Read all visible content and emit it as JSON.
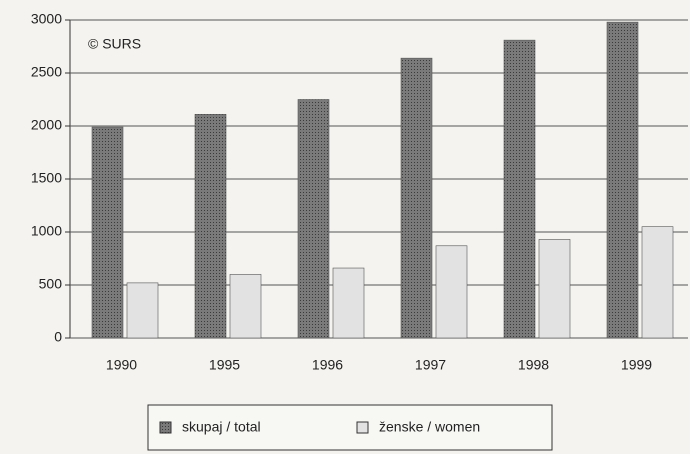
{
  "chart_data": {
    "type": "bar",
    "annotation": "© SURS",
    "categories": [
      "1990",
      "1995",
      "1996",
      "1997",
      "1998",
      "1999"
    ],
    "series": [
      {
        "name": "skupaj / total",
        "color": "#707070",
        "values": [
          1990,
          2110,
          2250,
          2640,
          2810,
          2980
        ]
      },
      {
        "name": "ženske / women",
        "color": "#e2e2e2",
        "values": [
          520,
          600,
          660,
          870,
          930,
          1050
        ]
      }
    ],
    "ylim": [
      0,
      3000
    ],
    "yticks": [
      0,
      500,
      1000,
      1500,
      2000,
      2500,
      3000
    ],
    "grid": true
  }
}
